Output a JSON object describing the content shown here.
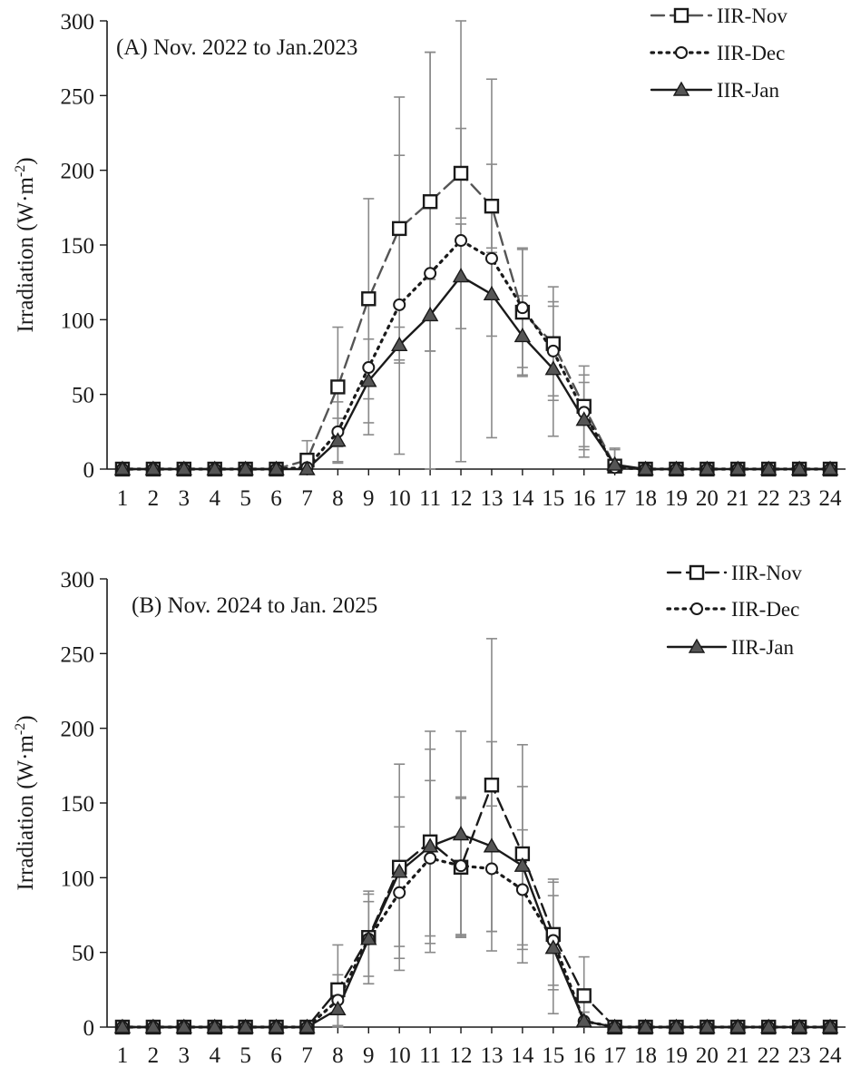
{
  "chart_data": [
    {
      "type": "line",
      "title": "(A) Nov. 2022 to Jan.2023",
      "xlabel": "",
      "ylabel": "Irradiation (W·m-2)",
      "ylabel_main": "Irradiation (W·m",
      "ylabel_sup": "-2",
      "ylabel_close": ")",
      "ylim": [
        0,
        300
      ],
      "yticks": [
        "0",
        "50",
        "100",
        "150",
        "200",
        "250",
        "300"
      ],
      "x": [
        "1",
        "2",
        "3",
        "4",
        "5",
        "6",
        "7",
        "8",
        "9",
        "10",
        "11",
        "12",
        "13",
        "14",
        "15",
        "16",
        "17",
        "18",
        "19",
        "20",
        "21",
        "22",
        "23",
        "24"
      ],
      "legend_position": "top-right",
      "series": [
        {
          "name": "IIR-Nov",
          "style": "dashed",
          "marker": "square",
          "color": "#555555",
          "values": [
            0,
            0,
            0,
            0,
            0,
            0,
            6,
            55,
            114,
            161,
            179,
            198,
            176,
            105,
            84,
            42,
            2,
            0,
            0,
            0,
            0,
            0,
            0,
            0
          ],
          "errors": [
            0,
            0,
            0,
            0,
            0,
            0,
            13,
            40,
            67,
            88,
            100,
            30,
            28,
            42,
            38,
            27,
            12,
            0,
            0,
            0,
            0,
            0,
            0,
            0
          ]
        },
        {
          "name": "IIR-Dec",
          "style": "dotted",
          "marker": "circle",
          "color": "#1a1a1a",
          "values": [
            0,
            0,
            0,
            0,
            0,
            0,
            1,
            25,
            68,
            110,
            131,
            153,
            141,
            108,
            79,
            38,
            1,
            0,
            0,
            0,
            0,
            0,
            0,
            0
          ],
          "errors": [
            0,
            0,
            0,
            0,
            0,
            0,
            5,
            20,
            45,
            100,
            148,
            148,
            120,
            40,
            30,
            25,
            5,
            0,
            0,
            0,
            0,
            0,
            0,
            0
          ]
        },
        {
          "name": "IIR-Jan",
          "style": "solid",
          "marker": "triangle",
          "color": "#1a1a1a",
          "values": [
            0,
            0,
            0,
            0,
            0,
            0,
            0,
            19,
            59,
            83,
            103,
            129,
            117,
            89,
            67,
            33,
            3,
            0,
            0,
            0,
            0,
            0,
            0,
            0
          ],
          "errors": [
            0,
            0,
            0,
            0,
            0,
            0,
            3,
            15,
            28,
            12,
            24,
            35,
            28,
            27,
            45,
            25,
            10,
            0,
            0,
            0,
            0,
            0,
            0,
            0
          ]
        }
      ]
    },
    {
      "type": "line",
      "title": "(B) Nov. 2024 to Jan. 2025",
      "xlabel": "",
      "ylabel": "Irradiation (W·m-2)",
      "ylabel_main": "Irradiation (W·m",
      "ylabel_sup": "-2",
      "ylabel_close": ")",
      "ylim": [
        0,
        300
      ],
      "yticks": [
        "0",
        "50",
        "100",
        "150",
        "200",
        "250",
        "300"
      ],
      "x": [
        "1",
        "2",
        "3",
        "4",
        "5",
        "6",
        "7",
        "8",
        "9",
        "10",
        "11",
        "12",
        "13",
        "14",
        "15",
        "16",
        "17",
        "18",
        "19",
        "20",
        "21",
        "22",
        "23",
        "24"
      ],
      "legend_position": "top-right",
      "series": [
        {
          "name": "IIR-Nov",
          "style": "dashed",
          "marker": "square",
          "color": "#1a1a1a",
          "values": [
            0,
            0,
            0,
            0,
            0,
            0,
            0,
            25,
            60,
            107,
            124,
            107,
            162,
            116,
            62,
            21,
            0,
            0,
            0,
            0,
            0,
            0,
            0,
            0
          ],
          "errors": [
            0,
            0,
            0,
            0,
            0,
            0,
            2,
            30,
            31,
            69,
            74,
            46,
            98,
            73,
            37,
            26,
            2,
            0,
            0,
            0,
            0,
            0,
            0,
            0
          ]
        },
        {
          "name": "IIR-Dec",
          "style": "dotted",
          "marker": "circle",
          "color": "#1a1a1a",
          "values": [
            0,
            0,
            0,
            0,
            0,
            0,
            0,
            18,
            59,
            90,
            113,
            108,
            106,
            92,
            58,
            4,
            0,
            0,
            0,
            0,
            0,
            0,
            0,
            0
          ],
          "errors": [
            0,
            0,
            0,
            0,
            0,
            0,
            2,
            17,
            25,
            44,
            52,
            46,
            42,
            40,
            30,
            6,
            2,
            0,
            0,
            0,
            0,
            0,
            0,
            0
          ]
        },
        {
          "name": "IIR-Jan",
          "style": "solid",
          "marker": "triangle",
          "color": "#1a1a1a",
          "values": [
            0,
            0,
            0,
            0,
            0,
            0,
            0,
            12,
            59,
            104,
            121,
            129,
            121,
            108,
            53,
            4,
            0,
            0,
            0,
            0,
            0,
            0,
            0,
            0
          ],
          "errors": [
            0,
            0,
            0,
            0,
            0,
            0,
            2,
            12,
            30,
            50,
            65,
            69,
            70,
            53,
            44,
            6,
            2,
            0,
            0,
            0,
            0,
            0,
            0,
            0
          ]
        }
      ]
    }
  ]
}
